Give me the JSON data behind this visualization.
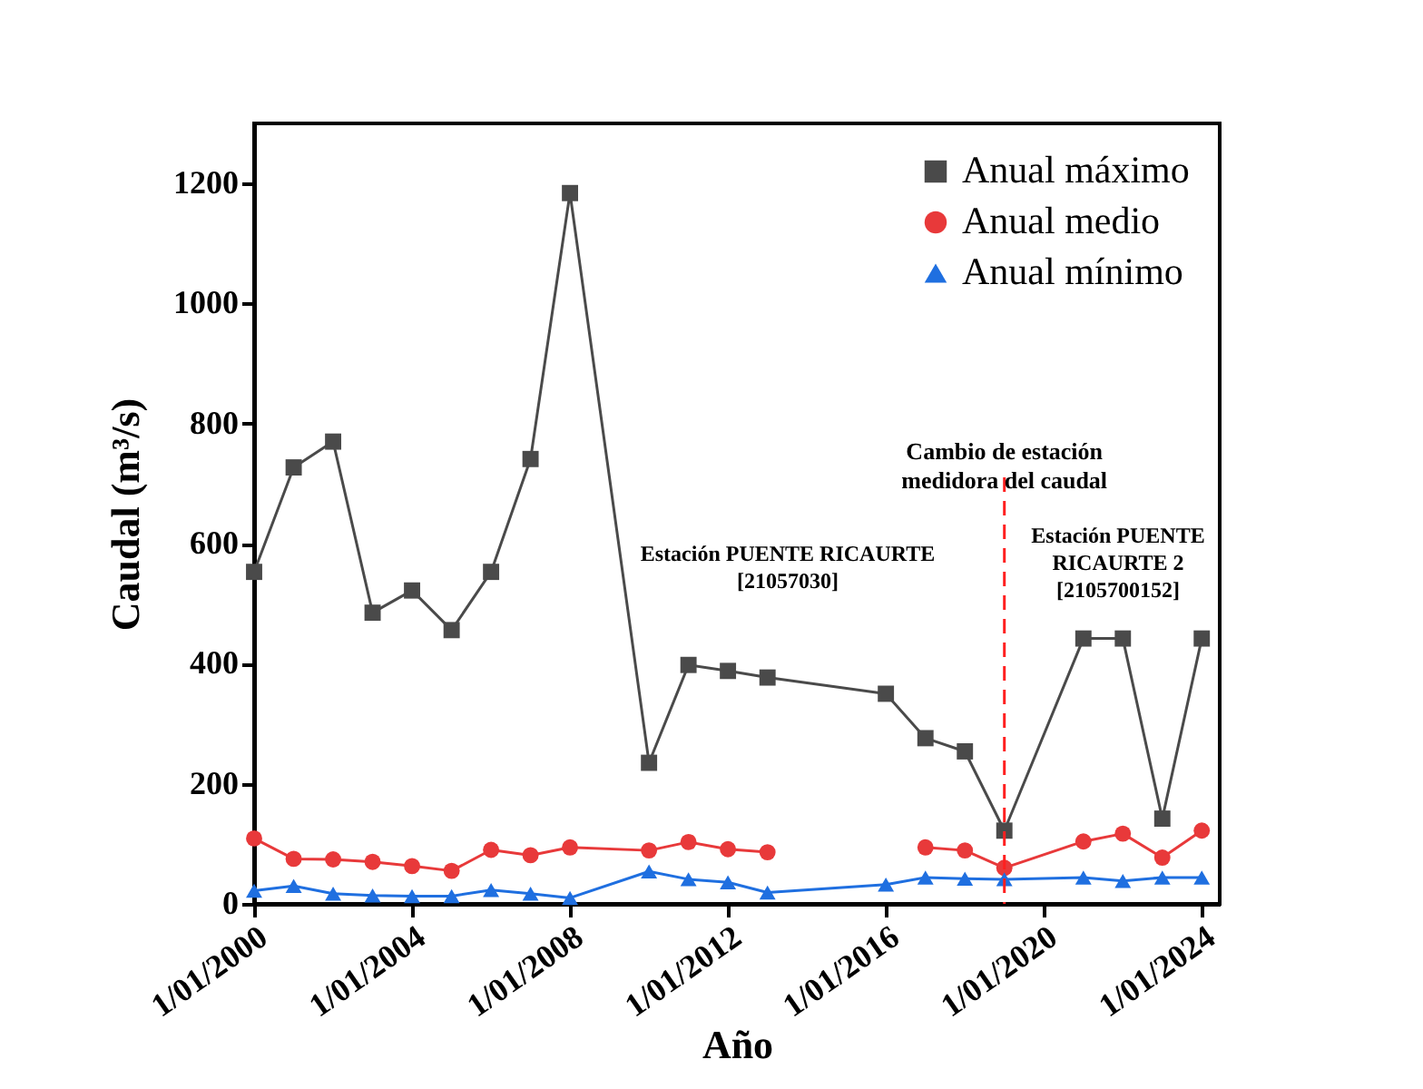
{
  "chart_data": {
    "type": "line",
    "xlabel": "Año",
    "ylabel": "Caudal (m³/s)",
    "x": [
      "2000-01-01",
      "2001-01-01",
      "2002-01-01",
      "2003-01-01",
      "2004-01-01",
      "2005-01-01",
      "2006-01-01",
      "2007-01-01",
      "2008-01-01",
      "2010-01-01",
      "2011-01-01",
      "2012-01-01",
      "2013-01-01",
      "2016-01-01",
      "2017-01-01",
      "2018-01-01",
      "2019-01-01",
      "2021-01-01",
      "2022-01-01",
      "2023-01-01",
      "2024-01-01"
    ],
    "series": [
      {
        "name": "Anual máximo",
        "color": "#4a4a4a",
        "marker": "square",
        "values": [
          553,
          727,
          770,
          485,
          522,
          456,
          553,
          741,
          1184,
          235,
          398,
          388,
          377,
          350,
          276,
          254,
          122,
          442,
          442,
          142,
          442
        ]
      },
      {
        "name": "Anual medio",
        "color": "#e8393a",
        "marker": "circle",
        "values": [
          109,
          75,
          74,
          70,
          63,
          55,
          90,
          81,
          94,
          89,
          103,
          91,
          86,
          null,
          94,
          89,
          60,
          104,
          117,
          77,
          122
        ]
      },
      {
        "name": "Anual mínimo",
        "color": "#1f6fe0",
        "marker": "triangle",
        "values": [
          22,
          30,
          17,
          14,
          13,
          13,
          23,
          17,
          10,
          54,
          41,
          36,
          19,
          32,
          44,
          42,
          41,
          44,
          38,
          44,
          44
        ]
      }
    ],
    "xlim": [
      "2000-01-01",
      "2024-06-15"
    ],
    "xticks": [
      {
        "value": "2000-01-01",
        "label": "1/01/2000"
      },
      {
        "value": "2004-01-01",
        "label": "1/01/2004"
      },
      {
        "value": "2008-01-01",
        "label": "1/01/2008"
      },
      {
        "value": "2012-01-01",
        "label": "1/01/2012"
      },
      {
        "value": "2016-01-01",
        "label": "1/01/2016"
      },
      {
        "value": "2020-01-01",
        "label": "1/01/2020"
      },
      {
        "value": "2024-01-01",
        "label": "1/01/2024"
      }
    ],
    "ylim": [
      0,
      1300
    ],
    "yticks": [
      0,
      200,
      400,
      600,
      800,
      1000,
      1200
    ],
    "ref_lines": [
      {
        "axis": "x",
        "value": "2019-01-01",
        "label": "Cambio de estación\nmedidora del caudal",
        "color": "#ff2020",
        "line_style": "dashed"
      }
    ],
    "annotations": [
      "Estación PUENTE RICAURTE\n[21057030]",
      "Estación PUENTE\nRICAURTE 2\n[2105700152]"
    ],
    "grid": false,
    "legend": "top right"
  }
}
